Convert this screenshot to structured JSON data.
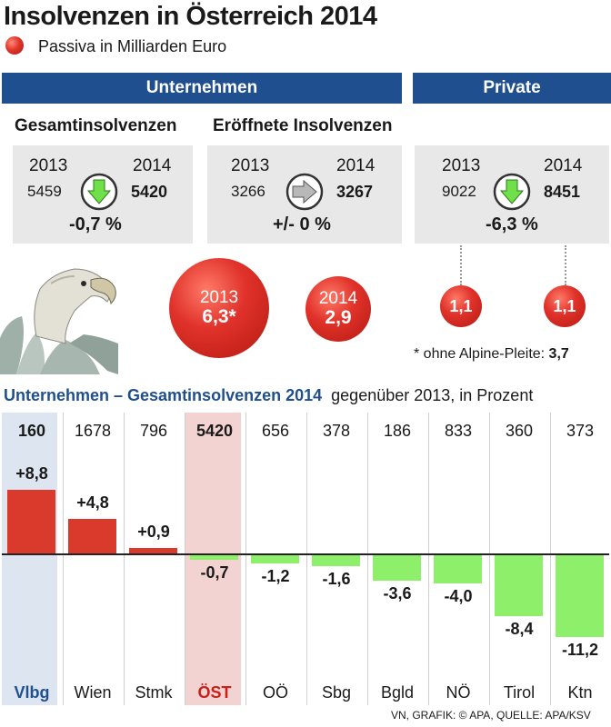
{
  "header": {
    "title": "Insolvenzen in Österreich 2014",
    "legend_label": "Passiva in Milliarden Euro"
  },
  "banners": {
    "unternehmen": "Unternehmen",
    "private": "Private"
  },
  "stats": [
    {
      "title": "Gesamtinsolvenzen",
      "year_a": "2013",
      "year_b": "2014",
      "value_a": "5459",
      "value_b": "5420",
      "change": "-0,7 %",
      "trend": "down"
    },
    {
      "title": "Eröffnete Insolvenzen",
      "year_a": "2013",
      "year_b": "2014",
      "value_a": "3266",
      "value_b": "3267",
      "change": "+/- 0 %",
      "trend": "flat"
    },
    {
      "title": "",
      "year_a": "2013",
      "year_b": "2014",
      "value_a": "9022",
      "value_b": "8451",
      "change": "-6,3 %",
      "trend": "down"
    }
  ],
  "passiva": {
    "unternehmen_2013": {
      "year": "2013",
      "value": "6,3*"
    },
    "unternehmen_2014": {
      "year": "2014",
      "value": "2,9"
    },
    "private_2013": "1,1",
    "private_2014": "1,1",
    "footnote_text": "* ohne Alpine-Pleite: ",
    "footnote_value": "3,7"
  },
  "chart_data": {
    "type": "bar",
    "title": "Unternehmen – Gesamtinsolvenzen 2014",
    "subtitle": "gegenüber 2013, in Prozent",
    "categories": [
      "Vlbg",
      "Wien",
      "Stmk",
      "ÖST",
      "OÖ",
      "Sbg",
      "Bgld",
      "NÖ",
      "Tirol",
      "Ktn"
    ],
    "counts": [
      "160",
      "1678",
      "796",
      "5420",
      "656",
      "378",
      "186",
      "833",
      "360",
      "373"
    ],
    "values": [
      8.8,
      4.8,
      0.9,
      -0.7,
      -1.2,
      -1.6,
      -3.6,
      -4.0,
      -8.4,
      -11.2
    ],
    "value_labels": [
      "+8,8",
      "+4,8",
      "+0,9",
      "-0,7",
      "-1,2",
      "-1,6",
      "-3,6",
      "-4,0",
      "-8,4",
      "-11,2"
    ],
    "ylim": [
      -12.6,
      13.6
    ],
    "positive_color": "#d93a2b",
    "negative_color": "#8ef06a"
  },
  "source": "VN, GRAFIK: © APA, QUELLE: APA/KSV"
}
